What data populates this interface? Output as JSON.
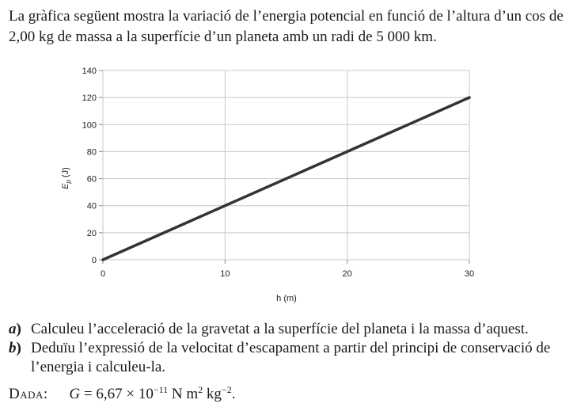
{
  "intro_text": "La gràfica següent mostra la variació de l’energia potencial en funció de l’altura d’un cos de 2,00 kg de massa a la superfície d’un planeta amb un radi de 5 000 km.",
  "chart_data": {
    "type": "line",
    "xlabel": "h (m)",
    "ylabel": "Ep (J)",
    "ylabel_main": "E",
    "ylabel_sub": "p",
    "ylabel_unit": " (J)",
    "x_ticks": [
      "0",
      "10",
      "20",
      "30"
    ],
    "y_ticks": [
      "0",
      "20",
      "40",
      "60",
      "80",
      "100",
      "120",
      "140"
    ],
    "xlim": [
      0,
      30
    ],
    "ylim": [
      0,
      140
    ],
    "grid": true,
    "series": [
      {
        "x": [
          0,
          30
        ],
        "values": [
          0,
          120
        ]
      }
    ]
  },
  "questions": [
    {
      "label": "a",
      "text": "Calculeu l’acceleració de la gravetat a la superfície del planeta i la massa d’aquest."
    },
    {
      "label": "b",
      "text": "Deduïu l’expressió de la velocitat d’escapament a partir del principi de conservació de l’energia i calculeu-la."
    }
  ],
  "dada": {
    "label": "Dada:",
    "var": "G",
    "eq": " = 6,67 × 10",
    "exp1": "−11",
    "unit1": " N m",
    "exp2": "2",
    "unit2": " kg",
    "exp3": "−2",
    "end": "."
  }
}
